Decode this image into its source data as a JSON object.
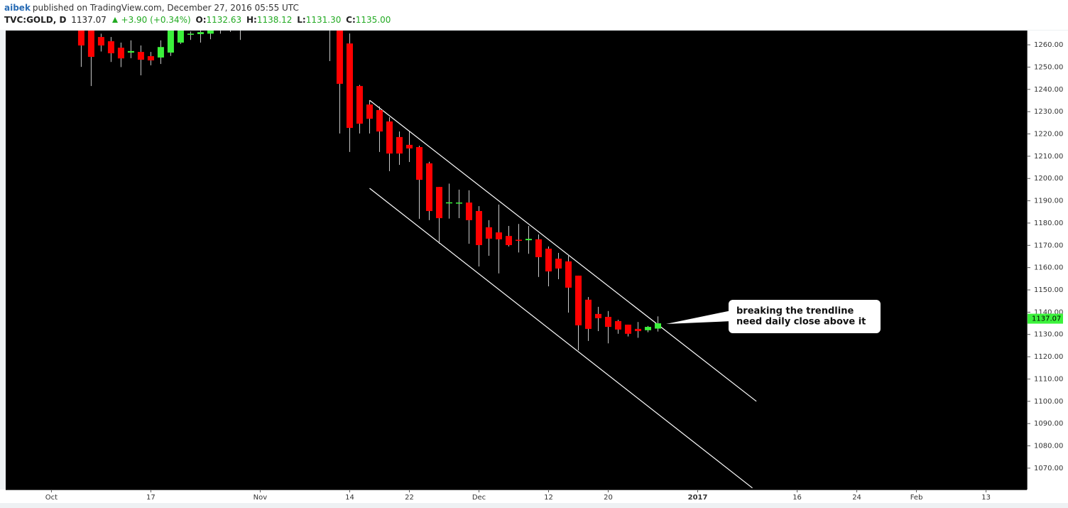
{
  "header": {
    "author": "aibek",
    "published": "published on TradingView.com, December 27, 2016 05:55 UTC",
    "symbol": "TVC:GOLD, D",
    "last": "1137.07",
    "change": "+3.90 (+0.34%)",
    "o_label": "O:",
    "o": "1132.63",
    "h_label": "H:",
    "h": "1138.12",
    "l_label": "L:",
    "l": "1131.30",
    "c_label": "C:",
    "c": "1135.00"
  },
  "chart_data": {
    "type": "candlestick",
    "x": [
      -27,
      -26,
      -25,
      -24,
      -23,
      -22,
      -21,
      -20,
      -19,
      -18,
      -17,
      -16,
      -15,
      -14,
      -13,
      -12,
      -11,
      -2,
      -1,
      0,
      1,
      2,
      3,
      4,
      5,
      6,
      7,
      8,
      9,
      10,
      11,
      12,
      13,
      14,
      15,
      16,
      17,
      18,
      19,
      20,
      21,
      22,
      23,
      24,
      25,
      26,
      27,
      28,
      29,
      30,
      31
    ],
    "open": [
      1268,
      1267,
      1263.5,
      1261.6,
      1258.7,
      1256.5,
      1256.8,
      1254.9,
      1254.3,
      1256.5,
      1261,
      1264.5,
      1264.8,
      1265,
      1270,
      1272,
      1274,
      1270,
      1272,
      1260.6,
      1241.5,
      1233.2,
      1230.7,
      1225.6,
      1218.6,
      1215.1,
      1214.1,
      1206.8,
      1196.2,
      1189,
      1189.2,
      1189.2,
      1185.4,
      1178.1,
      1175.8,
      1174.2,
      1172.5,
      1172.3,
      1172.7,
      1168.5,
      1164,
      1162.8,
      1156.4,
      1145.6,
      1139.2,
      1137.9,
      1136,
      1134.4,
      1132.5,
      1131.9,
      1132.63
    ],
    "high": [
      1272,
      1270,
      1265,
      1263.5,
      1261,
      1262,
      1259.7,
      1256.8,
      1262,
      1272,
      1272,
      1266,
      1267,
      1268,
      1272,
      1275,
      1278,
      1275,
      1275,
      1265.1,
      1242,
      1235.1,
      1232.3,
      1227.5,
      1221.1,
      1221.1,
      1214.7,
      1207.5,
      1196.2,
      1197.7,
      1195,
      1194.7,
      1187.6,
      1181.3,
      1188.3,
      1178.7,
      1179.6,
      1178.7,
      1174.9,
      1169.5,
      1166.6,
      1165.3,
      1156.4,
      1146.8,
      1142.4,
      1140.5,
      1136.6,
      1134.4,
      1135.6,
      1133.8,
      1138.12
    ],
    "low": [
      1250.1,
      1241.5,
      1257,
      1252.3,
      1250,
      1254,
      1246.3,
      1250.8,
      1251.4,
      1255,
      1260.4,
      1262.2,
      1261,
      1262.5,
      1265,
      1265.8,
      1262.2,
      1252.7,
      1220.2,
      1211.9,
      1220.2,
      1220.2,
      1211.9,
      1203.3,
      1206.1,
      1207.4,
      1181.9,
      1181.3,
      1170.7,
      1182,
      1182.2,
      1170.7,
      1160.5,
      1165.3,
      1157.4,
      1169.5,
      1166.8,
      1166.2,
      1155.8,
      1151.6,
      1154.8,
      1139.8,
      1122.9,
      1127.1,
      1131.5,
      1126,
      1130.3,
      1129.1,
      1128.5,
      1131,
      1131.3
    ],
    "close": [
      1259.7,
      1254.6,
      1259.7,
      1256.2,
      1253.9,
      1257.2,
      1253.3,
      1253,
      1259,
      1268,
      1270,
      1265,
      1265.7,
      1267,
      1268,
      1270,
      1272,
      1267,
      1242.5,
      1222.7,
      1224.6,
      1226.8,
      1221.1,
      1211.2,
      1211.2,
      1213.5,
      1199.4,
      1185.4,
      1182.2,
      1189.3,
      1189.2,
      1181.3,
      1170.1,
      1173,
      1172.7,
      1170.1,
      1172.3,
      1172.9,
      1164.7,
      1158.3,
      1159.6,
      1151,
      1134.1,
      1132.5,
      1137.3,
      1133.4,
      1132.2,
      1130.3,
      1131.5,
      1133.4,
      1135.0
    ],
    "up_color": "#3cf23c",
    "down_color": "#ff0000",
    "xlim": [
      -34.6,
      68.1
    ],
    "xticks": [
      {
        "value": -30,
        "label": "Oct"
      },
      {
        "value": -20,
        "label": "17"
      },
      {
        "value": -9,
        "label": "Nov"
      },
      {
        "value": 0,
        "label": "14"
      },
      {
        "value": 6,
        "label": "22"
      },
      {
        "value": 13,
        "label": "Dec"
      },
      {
        "value": 20,
        "label": "12"
      },
      {
        "value": 26,
        "label": "20"
      },
      {
        "value": 35,
        "label": "2017"
      },
      {
        "value": 45,
        "label": "16"
      },
      {
        "value": 51,
        "label": "24"
      },
      {
        "value": 57,
        "label": "Feb"
      },
      {
        "value": 64,
        "label": "13"
      }
    ],
    "ylim": [
      1060.4,
      1266.4
    ],
    "yticks": [
      {
        "value": 1070,
        "label": "1070.00"
      },
      {
        "value": 1080,
        "label": "1080.00"
      },
      {
        "value": 1090,
        "label": "1090.00"
      },
      {
        "value": 1100,
        "label": "1100.00"
      },
      {
        "value": 1110,
        "label": "1110.00"
      },
      {
        "value": 1120,
        "label": "1120.00"
      },
      {
        "value": 1130,
        "label": "1130.00"
      },
      {
        "value": 1140,
        "label": "1140.00"
      },
      {
        "value": 1150,
        "label": "1150.00"
      },
      {
        "value": 1160,
        "label": "1160.00"
      },
      {
        "value": 1170,
        "label": "1170.00"
      },
      {
        "value": 1180,
        "label": "1180.00"
      },
      {
        "value": 1190,
        "label": "1190.00"
      },
      {
        "value": 1200,
        "label": "1200.00"
      },
      {
        "value": 1210,
        "label": "1210.00"
      },
      {
        "value": 1220,
        "label": "1220.00"
      },
      {
        "value": 1230,
        "label": "1230.00"
      },
      {
        "value": 1240,
        "label": "1240.00"
      },
      {
        "value": 1250,
        "label": "1250.00"
      },
      {
        "value": 1260,
        "label": "1260.00"
      }
    ],
    "last_price": 1137.07,
    "last_price_color": "#3cf23c",
    "trendlines": [
      {
        "x": [
          2,
          40.9
        ],
        "y": [
          1235.1,
          1100.0
        ]
      },
      {
        "x": [
          2,
          40.5
        ],
        "y": [
          1195.6,
          1061.1
        ]
      }
    ],
    "trendline_color": "#ffffff",
    "annotation": [
      "breaking the trendline",
      "need daily close above it"
    ]
  }
}
